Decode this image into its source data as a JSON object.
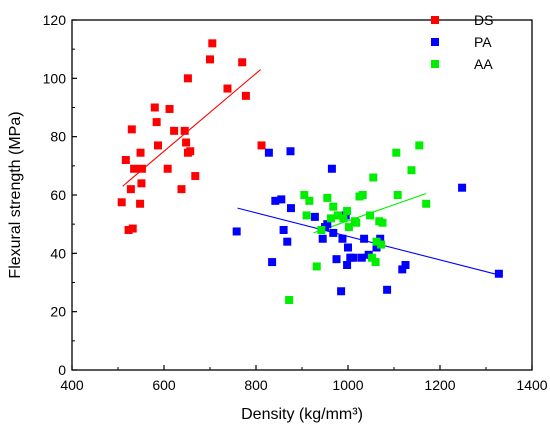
{
  "chart_data": {
    "type": "scatter",
    "xlabel": "Density (kg/mm³)",
    "ylabel": "Flexural strength (MPa)",
    "xlim": [
      400,
      1400
    ],
    "ylim": [
      0,
      120
    ],
    "xticks": [
      "400",
      "600",
      "800",
      "1000",
      "1200",
      "1400"
    ],
    "yticks": [
      "0",
      "20",
      "40",
      "60",
      "80",
      "100",
      "120"
    ],
    "grid": false,
    "legend": "top-right",
    "series": [
      {
        "name": "DS",
        "color": "#ff0000",
        "fit": [
          [
            510,
            63
          ],
          [
            810,
            103
          ]
        ],
        "points": [
          [
            508,
            57.5
          ],
          [
            517,
            72
          ],
          [
            523,
            48
          ],
          [
            528,
            62
          ],
          [
            530,
            82.5
          ],
          [
            532,
            48.5
          ],
          [
            535,
            69
          ],
          [
            548,
            57
          ],
          [
            549,
            74.5
          ],
          [
            551,
            64
          ],
          [
            552,
            69
          ],
          [
            580,
            90
          ],
          [
            584,
            85
          ],
          [
            587,
            77
          ],
          [
            608,
            69
          ],
          [
            612,
            89.5
          ],
          [
            622,
            82
          ],
          [
            638,
            62
          ],
          [
            645,
            82
          ],
          [
            648,
            78
          ],
          [
            652,
            100
          ],
          [
            652,
            74.5
          ],
          [
            657,
            75
          ],
          [
            668,
            66.5
          ],
          [
            700,
            106.5
          ],
          [
            705,
            112
          ],
          [
            738,
            96.5
          ],
          [
            770,
            105.5
          ],
          [
            778,
            94
          ],
          [
            812,
            77
          ]
        ]
      },
      {
        "name": "PA",
        "color": "#0000ff",
        "fit": [
          [
            760,
            55.5
          ],
          [
            1330,
            32.5
          ]
        ],
        "points": [
          [
            758,
            47.5
          ],
          [
            828,
            74.5
          ],
          [
            835,
            37
          ],
          [
            842,
            58
          ],
          [
            855,
            58.5
          ],
          [
            860,
            48
          ],
          [
            868,
            44
          ],
          [
            875,
            75
          ],
          [
            876,
            55.5
          ],
          [
            928,
            52.5
          ],
          [
            945,
            45
          ],
          [
            950,
            49
          ],
          [
            955,
            50
          ],
          [
            965,
            69
          ],
          [
            968,
            47
          ],
          [
            975,
            38
          ],
          [
            985,
            27
          ],
          [
            988,
            45
          ],
          [
            995,
            53
          ],
          [
            998,
            36
          ],
          [
            1000,
            42
          ],
          [
            1005,
            38.5
          ],
          [
            1012,
            38.5
          ],
          [
            1030,
            38.5
          ],
          [
            1035,
            45
          ],
          [
            1045,
            39.5
          ],
          [
            1062,
            42
          ],
          [
            1070,
            45
          ],
          [
            1085,
            27.5
          ],
          [
            1118,
            34.5
          ],
          [
            1125,
            36
          ],
          [
            1248,
            62.5
          ],
          [
            1328,
            33
          ]
        ]
      },
      {
        "name": "AA",
        "color": "#00ee00",
        "fit": [
          [
            925,
            47
          ],
          [
            1170,
            60.5
          ]
        ],
        "points": [
          [
            872,
            24
          ],
          [
            905,
            60
          ],
          [
            910,
            53
          ],
          [
            916,
            58
          ],
          [
            932,
            35.5
          ],
          [
            942,
            48
          ],
          [
            955,
            59
          ],
          [
            963,
            52
          ],
          [
            968,
            56
          ],
          [
            978,
            53
          ],
          [
            990,
            52
          ],
          [
            998,
            54.5
          ],
          [
            1002,
            49
          ],
          [
            1015,
            51
          ],
          [
            1018,
            50.5
          ],
          [
            1025,
            59.5
          ],
          [
            1032,
            60
          ],
          [
            1048,
            53
          ],
          [
            1052,
            38.5
          ],
          [
            1055,
            66
          ],
          [
            1060,
            37
          ],
          [
            1062,
            44
          ],
          [
            1068,
            51
          ],
          [
            1072,
            43
          ],
          [
            1075,
            50.5
          ],
          [
            1105,
            74.5
          ],
          [
            1108,
            60
          ],
          [
            1138,
            68.5
          ],
          [
            1155,
            77
          ],
          [
            1170,
            57
          ]
        ]
      }
    ]
  }
}
